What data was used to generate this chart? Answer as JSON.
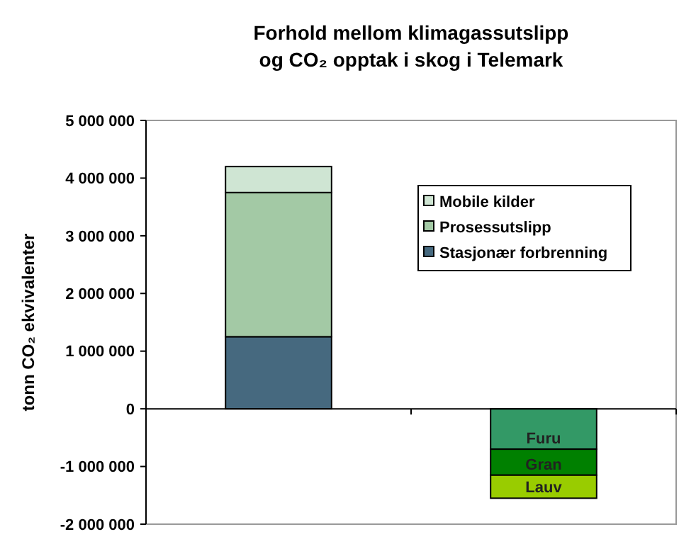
{
  "chart_data": {
    "type": "bar",
    "title": "Forhold mellom klimagassutslipp\nog CO₂ opptak i skog i Telemark",
    "ylabel": "tonn CO₂ ekvivalenter",
    "categories": [
      null,
      null
    ],
    "stacked": true,
    "legend": "top right",
    "ylim": [
      -2000000,
      5000000
    ],
    "yticks": [
      {
        "value": -2000000,
        "label": "-2 000 000"
      },
      {
        "value": -1000000,
        "label": "-1 000 000"
      },
      {
        "value": 0,
        "label": "0"
      },
      {
        "value": 1000000,
        "label": "1 000 000"
      },
      {
        "value": 2000000,
        "label": "2 000 000"
      },
      {
        "value": 3000000,
        "label": "3 000 000"
      },
      {
        "value": 4000000,
        "label": "4 000 000"
      },
      {
        "value": 5000000,
        "label": "5 000 000"
      }
    ],
    "series": [
      {
        "name": "Stasjonær forbrenning",
        "color": "#46697f",
        "values": [
          1250000,
          null
        ]
      },
      {
        "name": "Prosessutslipp",
        "color": "#a3c9a5",
        "values": [
          2500000,
          null
        ]
      },
      {
        "name": "Mobile kilder",
        "color": "#cfe5d3",
        "values": [
          450000,
          null
        ]
      },
      {
        "name": "Furu",
        "color": "#339966",
        "values": [
          null,
          -700000
        ]
      },
      {
        "name": "Gran",
        "color": "#008000",
        "values": [
          null,
          -450000
        ]
      },
      {
        "name": "Lauv",
        "color": "#99cc00",
        "values": [
          null,
          -400000
        ]
      }
    ]
  }
}
